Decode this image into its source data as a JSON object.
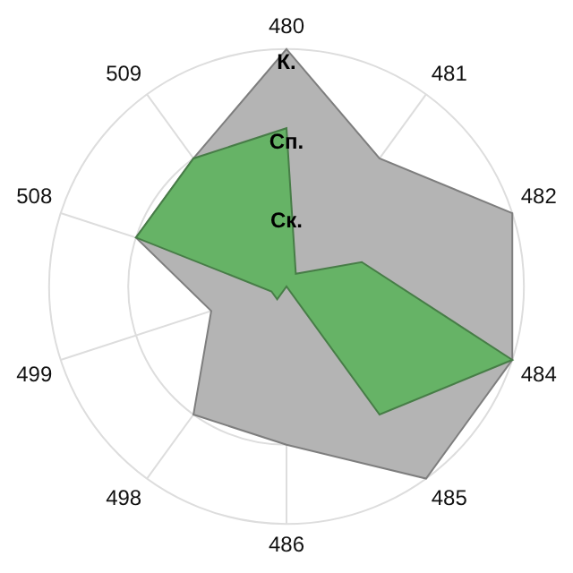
{
  "chart_data": {
    "type": "radar",
    "categories": [
      "480",
      "481",
      "482",
      "484",
      "485",
      "486",
      "498",
      "499",
      "508",
      "509"
    ],
    "series": [
      {
        "color": "#b4b4b4",
        "values": [
          3,
          2,
          3,
          3,
          3,
          2,
          2,
          1,
          2,
          2
        ]
      },
      {
        "color": "#66b366",
        "values": [
          2,
          0.2,
          1,
          3,
          2,
          0,
          0.2,
          0.2,
          2,
          2
        ]
      }
    ],
    "ylim": [
      0,
      3
    ],
    "yticks": [
      {
        "value": 1,
        "label": "Ск."
      },
      {
        "value": 2,
        "label": "Сп."
      },
      {
        "value": 3,
        "label": "К."
      }
    ],
    "grid": true,
    "legend": false,
    "marker": "none"
  }
}
